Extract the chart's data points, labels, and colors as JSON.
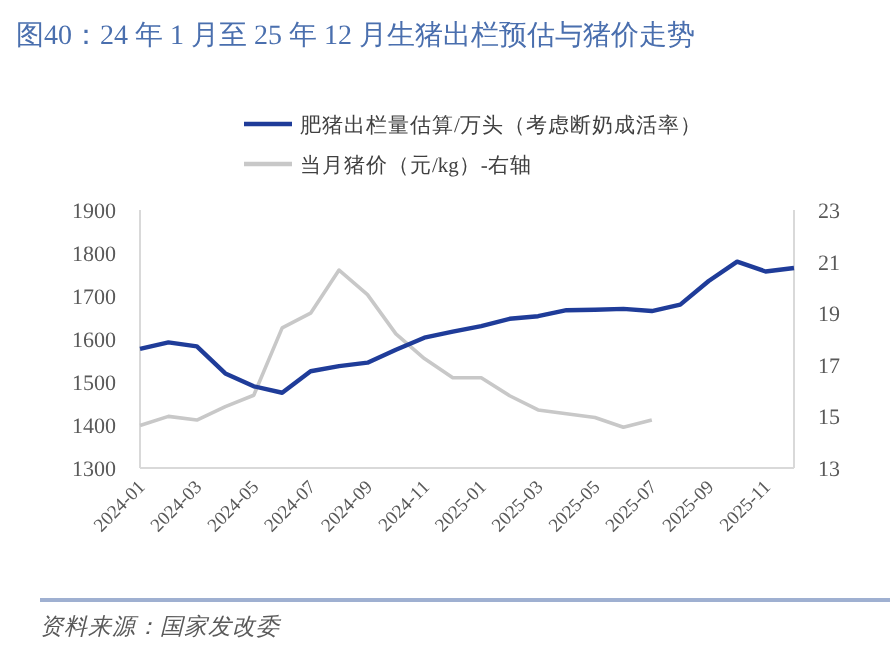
{
  "chart_data": {
    "type": "line",
    "title": "图40：24 年 1 月至 25 年 12 月生猪出栏预估与猪价走势",
    "categories": [
      "2024-01",
      null,
      "2024-03",
      null,
      "2024-05",
      null,
      "2024-07",
      null,
      "2024-09",
      null,
      "2024-11",
      null,
      "2025-01",
      null,
      "2025-03",
      null,
      "2025-05",
      null,
      "2025-07",
      null,
      "2025-09",
      null,
      "2025-11",
      null
    ],
    "series": [
      {
        "name": "肥猪出栏量估算/万头（考虑断奶成活率）",
        "color": "#1f3c99",
        "values": [
          1577,
          1592,
          1583,
          1520,
          1490,
          1475,
          1525,
          1537,
          1545,
          1575,
          1603,
          1617,
          1630,
          1647,
          1653,
          1667,
          1668,
          1670,
          1665,
          1680,
          1735,
          1780,
          1757,
          1765
        ]
      },
      {
        "name": "当月猪价（元/kg）-右轴",
        "color": "#c8c8c8",
        "axis": "y2",
        "values": [
          14.65,
          15.0,
          14.86,
          15.38,
          15.82,
          18.43,
          19.0,
          20.67,
          19.72,
          18.2,
          17.24,
          16.5,
          16.5,
          15.8,
          15.25,
          15.1,
          14.96,
          14.58,
          14.86,
          null,
          null,
          null,
          null,
          null
        ]
      }
    ],
    "ylim": [
      1300,
      1900
    ],
    "yticks": [
      1300,
      1400,
      1500,
      1600,
      1700,
      1800,
      1900
    ],
    "y2lim": [
      13,
      23
    ],
    "y2ticks": [
      13,
      15,
      17,
      19,
      21,
      23
    ],
    "legend": "top",
    "grid": false,
    "annotations": [
      "资料来源：国家发改委"
    ]
  }
}
